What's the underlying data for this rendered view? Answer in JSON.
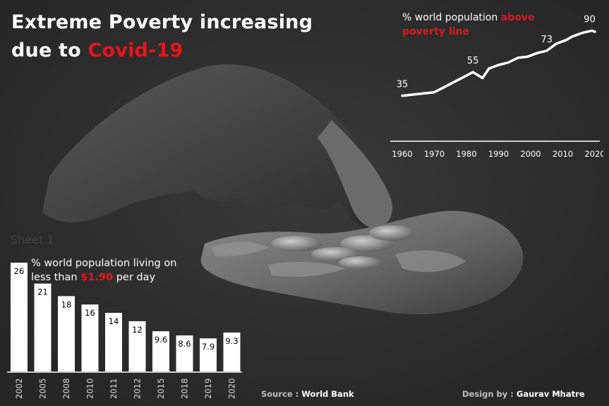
{
  "header": {
    "title_line1": "Extreme Poverty increasing",
    "title_line2_prefix": "due to ",
    "title_line2_highlight": "Covid-19"
  },
  "ghost_label": "Sheet 1",
  "line_chart_title": {
    "prefix": "% world population ",
    "highlight": "above poverty line"
  },
  "bar_chart_title": {
    "line1": "% world population living on",
    "prefix": "less than ",
    "highlight": "$1.90",
    "suffix": " per day"
  },
  "footer": {
    "source_label": "Source : ",
    "source_value": "World Bank",
    "design_label": "Design by : ",
    "design_value": "Gaurav Mhatre"
  },
  "colors": {
    "background": "#2b2b2b",
    "accent": "#e8141c",
    "text": "#ffffff"
  },
  "chart_data": [
    {
      "type": "line",
      "title": "% world population above poverty line",
      "x": [
        1960,
        1970,
        1975,
        1980,
        1982,
        1985,
        1987,
        1990,
        1993,
        1996,
        1999,
        2002,
        2005,
        2008,
        2011,
        2013,
        2016,
        2019,
        2020
      ],
      "values": [
        35,
        38,
        45,
        52,
        55,
        50,
        58,
        61,
        63,
        67,
        68,
        71,
        73,
        79,
        82,
        85,
        88,
        90,
        89
      ],
      "point_labels": [
        {
          "x": 1960,
          "label": "35"
        },
        {
          "x": 1982,
          "label": "55"
        },
        {
          "x": 2005,
          "label": "73"
        },
        {
          "x": 2019,
          "label": "90"
        }
      ],
      "xticks": [
        "1960",
        "1970",
        "1980",
        "1990",
        "2000",
        "2010",
        "2020"
      ],
      "xlim": [
        1960,
        2020
      ],
      "ylim": [
        0,
        100
      ],
      "grid": false
    },
    {
      "type": "bar",
      "title": "% world population living on less than $1.90 per day",
      "categories": [
        "2002",
        "2005",
        "2008",
        "2010",
        "2011",
        "2012",
        "2015",
        "2018",
        "2019",
        "2020"
      ],
      "values": [
        26,
        21,
        18,
        16,
        14,
        12,
        9.6,
        8.6,
        7.9,
        9.3
      ],
      "labels": [
        "26",
        "21",
        "18",
        "16",
        "14",
        "12",
        "9.6",
        "8.6",
        "7.9",
        "9.3"
      ],
      "ylim": [
        0,
        26
      ],
      "grid": false
    }
  ]
}
